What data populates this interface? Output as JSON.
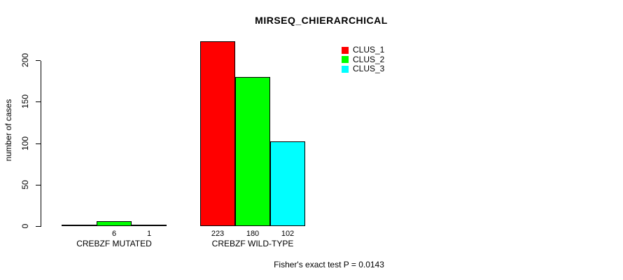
{
  "title": "MIRSEQ_CHIERARCHICAL",
  "footer": "Fisher's exact test P = 0.0143",
  "chart_data": {
    "type": "bar",
    "title": "MIRSEQ_CHIERARCHICAL",
    "xlabel": "",
    "ylabel": "number of cases",
    "categories": [
      "CREBZF MUTATED",
      "CREBZF WILD-TYPE"
    ],
    "series": [
      {
        "name": "CLUS_1",
        "color": "#ff0000",
        "values": [
          0,
          223
        ]
      },
      {
        "name": "CLUS_2",
        "color": "#00ff00",
        "values": [
          6,
          180
        ]
      },
      {
        "name": "CLUS_3",
        "color": "#00ffff",
        "values": [
          1,
          102
        ]
      }
    ],
    "bar_value_labels": [
      [
        "",
        "6",
        "1"
      ],
      [
        "223",
        "180",
        "102"
      ]
    ],
    "yticks": [
      0,
      50,
      100,
      150,
      200
    ],
    "ylim": [
      0,
      236
    ],
    "grid": false,
    "legend_position": "top-right",
    "legend": [
      {
        "label": "CLUS_1",
        "color": "#ff0000"
      },
      {
        "label": "CLUS_2",
        "color": "#00ff00"
      },
      {
        "label": "CLUS_3",
        "color": "#00ffff"
      }
    ],
    "annotation": "Fisher's exact test P = 0.0143"
  }
}
